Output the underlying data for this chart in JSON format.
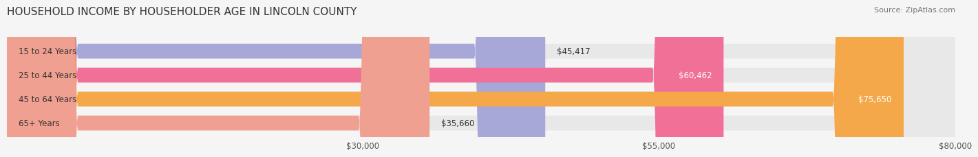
{
  "title": "HOUSEHOLD INCOME BY HOUSEHOLDER AGE IN LINCOLN COUNTY",
  "source": "Source: ZipAtlas.com",
  "categories": [
    "15 to 24 Years",
    "25 to 44 Years",
    "45 to 64 Years",
    "65+ Years"
  ],
  "values": [
    45417,
    60462,
    75650,
    35660
  ],
  "bar_colors": [
    "#a8a8d8",
    "#f07098",
    "#f5a84a",
    "#f0a090"
  ],
  "bar_bg_color": "#e8e8e8",
  "value_labels": [
    "$45,417",
    "$60,462",
    "$75,650",
    "$35,660"
  ],
  "value_label_inside": [
    false,
    true,
    true,
    false
  ],
  "xlim": [
    0,
    80000
  ],
  "xticks": [
    30000,
    55000,
    80000
  ],
  "xtick_labels": [
    "$30,000",
    "$55,000",
    "$80,000"
  ],
  "title_fontsize": 11,
  "label_fontsize": 8.5,
  "value_fontsize": 8.5,
  "source_fontsize": 8,
  "background_color": "#f5f5f5"
}
